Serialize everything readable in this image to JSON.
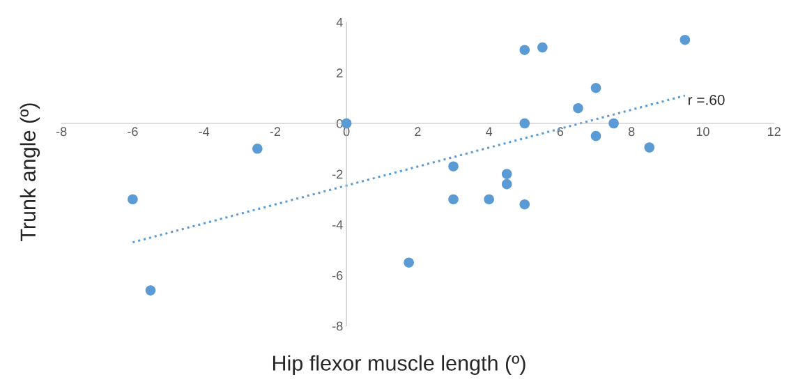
{
  "chart_data": {
    "type": "scatter",
    "xlabel": "Hip flexor muscle length (º)",
    "ylabel": "Trunk angle (º)",
    "xlim": [
      -8,
      12
    ],
    "ylim": [
      -8,
      4
    ],
    "xticks": [
      -8,
      -6,
      -4,
      -2,
      0,
      2,
      4,
      6,
      8,
      10,
      12
    ],
    "yticks": [
      -8,
      -6,
      -4,
      -2,
      0,
      2,
      4
    ],
    "grid": false,
    "legend": false,
    "series": [
      {
        "marker": "circle",
        "color": "#5b9bd5",
        "x": [
          -6,
          -5.5,
          -2.5,
          0,
          1.75,
          3,
          3,
          4,
          4.5,
          4.5,
          5,
          5,
          5.5,
          5,
          6.5,
          7,
          7,
          7.5,
          8.5,
          9.5
        ],
        "values": [
          -3,
          -6.6,
          -1.0,
          0,
          -5.5,
          -1.7,
          -3,
          -3,
          -2.0,
          -2.4,
          -3.2,
          2.9,
          3.0,
          0,
          0.6,
          1.4,
          -0.5,
          0,
          -0.95,
          3.3
        ]
      },
      {
        "type": "line",
        "color": "#5b9bd5",
        "line_style": "dotted",
        "x": [
          -6,
          9.5
        ],
        "values": [
          -4.7,
          1.1
        ]
      }
    ],
    "annotations": [
      "r =.60"
    ]
  }
}
